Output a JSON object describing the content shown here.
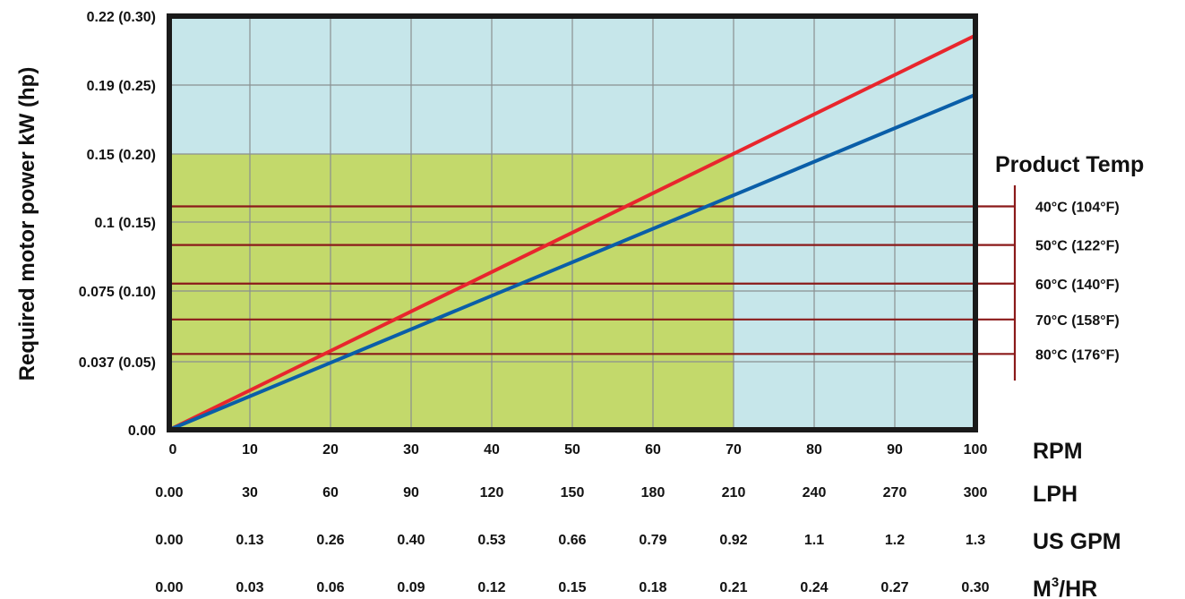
{
  "chart_data": {
    "type": "line",
    "ylabel": "Required motor power kW (hp)",
    "y_tick_labels": [
      "0.00",
      "0.037 (0.05)",
      "0.075 (0.10)",
      "0.1 (0.15)",
      "0.15 (0.20)",
      "0.19 (0.25)",
      "0.22 (0.30)"
    ],
    "ylim": [
      0,
      0.3
    ],
    "y_unit": "hp",
    "xlim": [
      0,
      100
    ],
    "x_scales": [
      {
        "unit_label": "RPM",
        "ticks": [
          "0",
          "10",
          "20",
          "30",
          "40",
          "50",
          "60",
          "70",
          "80",
          "90",
          "100"
        ]
      },
      {
        "unit_label": "LPH",
        "ticks": [
          "0.00",
          "30",
          "60",
          "90",
          "120",
          "150",
          "180",
          "210",
          "240",
          "270",
          "300"
        ]
      },
      {
        "unit_label": "US GPM",
        "ticks": [
          "0.00",
          "0.13",
          "0.26",
          "0.40",
          "0.53",
          "0.66",
          "0.79",
          "0.92",
          "1.1",
          "1.2",
          "1.3"
        ]
      },
      {
        "unit_label": "M",
        "unit_sup": "3",
        "unit_suffix": "/HR",
        "ticks": [
          "0.00",
          "0.03",
          "0.06",
          "0.09",
          "0.12",
          "0.15",
          "0.18",
          "0.21",
          "0.24",
          "0.27",
          "0.30"
        ]
      }
    ],
    "regions": [
      {
        "x_range": [
          0,
          100
        ],
        "y_range": [
          0,
          0.3
        ],
        "color": "#c6e6ea"
      },
      {
        "x_range": [
          0,
          70
        ],
        "y_range": [
          0,
          0.2
        ],
        "color": "#c3d96b"
      }
    ],
    "series": [
      {
        "color": "#e8262d",
        "points": [
          [
            0,
            0
          ],
          [
            100,
            0.286
          ]
        ]
      },
      {
        "color": "#0a5ea8",
        "points": [
          [
            0,
            0
          ],
          [
            100,
            0.243
          ]
        ]
      }
    ],
    "temperature_legend": {
      "title": "Product Temp",
      "line_color": "#8b1a1a",
      "items": [
        {
          "label": "40°C (104°F)",
          "y": 0.162
        },
        {
          "label": "50°C (122°F)",
          "y": 0.134
        },
        {
          "label": "60°C (140°F)",
          "y": 0.106
        },
        {
          "label": "70°C (158°F)",
          "y": 0.08
        },
        {
          "label": "80°C (176°F)",
          "y": 0.055
        }
      ]
    },
    "grid": true
  }
}
